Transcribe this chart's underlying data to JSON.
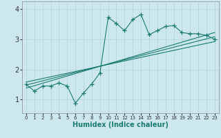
{
  "title": "",
  "xlabel": "Humidex (Indice chaleur)",
  "ylabel": "",
  "bg_color": "#cce8ee",
  "line_color": "#1a7a6e",
  "xlim": [
    -0.5,
    23.5
  ],
  "ylim": [
    0.55,
    4.25
  ],
  "xticks": [
    0,
    1,
    2,
    3,
    4,
    5,
    6,
    7,
    8,
    9,
    10,
    11,
    12,
    13,
    14,
    15,
    16,
    17,
    18,
    19,
    20,
    21,
    22,
    23
  ],
  "yticks": [
    1,
    2,
    3,
    4
  ],
  "scatter_x": [
    0,
    1,
    2,
    3,
    4,
    5,
    6,
    7,
    8,
    9,
    10,
    11,
    12,
    13,
    14,
    15,
    16,
    17,
    18,
    19,
    20,
    21,
    22,
    23
  ],
  "scatter_y": [
    1.5,
    1.28,
    1.45,
    1.45,
    1.55,
    1.45,
    0.88,
    1.22,
    1.52,
    1.88,
    3.72,
    3.52,
    3.28,
    3.65,
    3.82,
    3.15,
    3.28,
    3.42,
    3.45,
    3.22,
    3.18,
    3.18,
    3.12,
    3.0
  ],
  "line1_x": [
    0,
    23
  ],
  "line1_y": [
    1.38,
    3.22
  ],
  "line2_x": [
    0,
    23
  ],
  "line2_y": [
    1.48,
    3.08
  ],
  "line3_x": [
    0,
    23
  ],
  "line3_y": [
    1.58,
    2.92
  ],
  "grid_color": "#aed4db",
  "spine_color": "#888888",
  "tick_color": "#333333",
  "xlabel_color": "#1a7a6e"
}
